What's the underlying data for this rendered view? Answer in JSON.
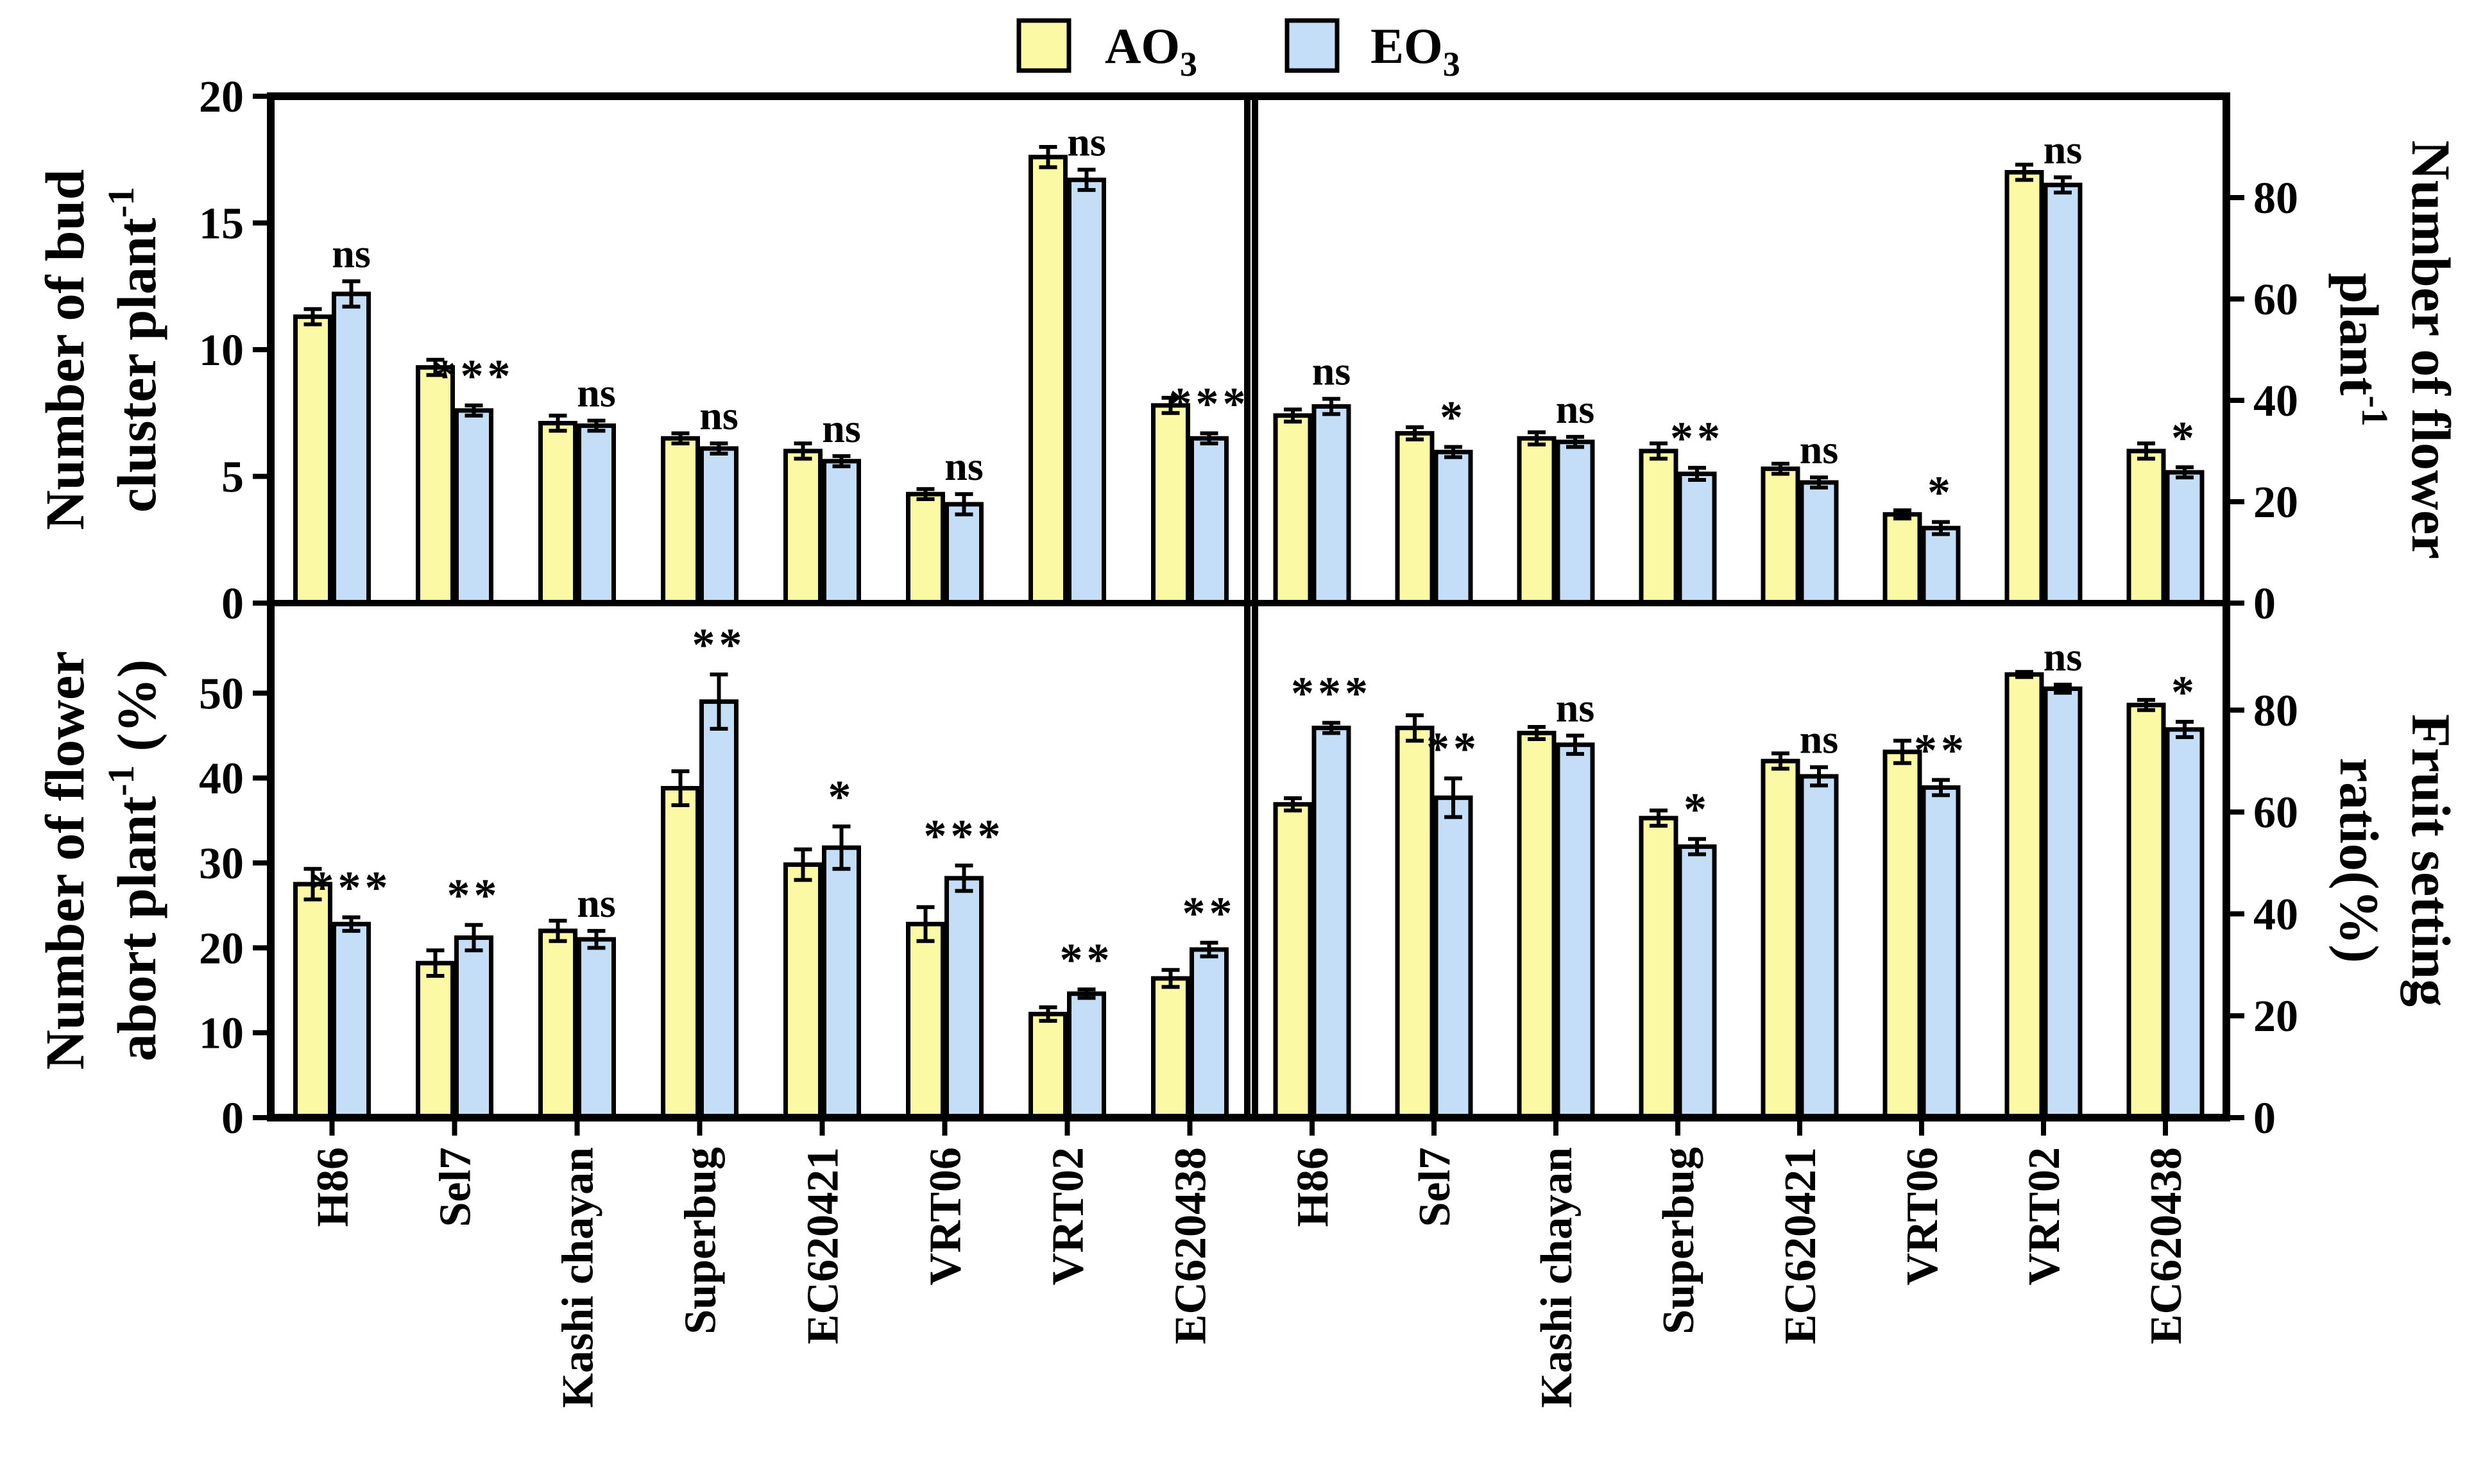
{
  "legend": {
    "items": [
      {
        "label": "AO",
        "sub": "3",
        "color": "#fbf9a3"
      },
      {
        "label": "EO",
        "sub": "3",
        "color": "#c5def7"
      }
    ]
  },
  "chart_data": [
    {
      "id": "bud",
      "type": "bar",
      "title": "",
      "ylabel_lines": [
        {
          "text": "Number of bud",
          "sup": ""
        },
        {
          "text": "cluster plant",
          "sup": "-1"
        }
      ],
      "ylim": [
        0,
        20
      ],
      "yticks": [
        0,
        5,
        10,
        15,
        20
      ],
      "categories": [
        "H86",
        "Sel7",
        "Kashi chayan",
        "Superbug",
        "EC620421",
        "VRT06",
        "VRT02",
        "EC620438"
      ],
      "series": [
        {
          "name": "AO3",
          "values": [
            11.3,
            9.3,
            7.1,
            6.5,
            6.0,
            4.3,
            17.6,
            7.8
          ],
          "errors": [
            0.3,
            0.3,
            0.3,
            0.2,
            0.3,
            0.2,
            0.4,
            0.3
          ]
        },
        {
          "name": "EO3",
          "values": [
            12.2,
            7.6,
            7.0,
            6.1,
            5.6,
            3.9,
            16.7,
            6.5
          ],
          "errors": [
            0.5,
            0.2,
            0.2,
            0.2,
            0.2,
            0.4,
            0.4,
            0.2
          ]
        }
      ],
      "significance": [
        "ns",
        "***",
        "ns",
        "ns",
        "ns",
        "ns",
        "ns",
        "***"
      ]
    },
    {
      "id": "flower",
      "type": "bar",
      "title": "",
      "ylabel_lines": [
        {
          "text": "Number of flower",
          "sup": ""
        },
        {
          "text": "plant",
          "sup": "-1"
        }
      ],
      "ylim": [
        0,
        100
      ],
      "yticks": [
        0,
        20,
        40,
        60,
        80
      ],
      "categories": [
        "H86",
        "Sel7",
        "Kashi chayan",
        "Superbug",
        "EC620421",
        "VRT06",
        "VRT02",
        "EC620438"
      ],
      "series": [
        {
          "name": "AO3",
          "values": [
            37,
            33.5,
            32.5,
            30,
            26.5,
            17.5,
            85,
            30
          ],
          "errors": [
            1.2,
            1.2,
            1.2,
            1.5,
            1.0,
            0.8,
            1.5,
            1.5
          ]
        },
        {
          "name": "EO3",
          "values": [
            38.8,
            29.8,
            31.8,
            25.5,
            23.8,
            14.8,
            82.5,
            25.8
          ],
          "errors": [
            1.5,
            1.0,
            1.0,
            1.2,
            1.0,
            1.2,
            1.5,
            1.0
          ]
        }
      ],
      "significance": [
        "ns",
        "*",
        "ns",
        "**",
        "ns",
        "*",
        "ns",
        "*"
      ]
    },
    {
      "id": "abort",
      "type": "bar",
      "title": "",
      "ylabel_lines": [
        {
          "text": "Number of flower",
          "sup": ""
        },
        {
          "text": "abort plant",
          "sup": "-1",
          "tail": " (%)"
        }
      ],
      "ylim": [
        0,
        60
      ],
      "yticks": [
        0,
        10,
        20,
        30,
        40,
        50
      ],
      "categories": [
        "H86",
        "Sel7",
        "Kashi chayan",
        "Superbug",
        "EC620421",
        "VRT06",
        "VRT02",
        "EC620438"
      ],
      "series": [
        {
          "name": "AO3",
          "values": [
            27.5,
            18.2,
            22.0,
            38.8,
            29.8,
            22.8,
            12.2,
            16.4
          ],
          "errors": [
            1.8,
            1.5,
            1.2,
            2.0,
            1.8,
            2.0,
            0.8,
            1.0
          ]
        },
        {
          "name": "EO3",
          "values": [
            22.8,
            21.2,
            21.0,
            49.0,
            31.8,
            28.2,
            14.6,
            19.8
          ],
          "errors": [
            0.8,
            1.5,
            1.0,
            3.2,
            2.5,
            1.5,
            0.5,
            0.8
          ]
        }
      ],
      "significance": [
        "***",
        "**",
        "ns",
        "**",
        "*",
        "***",
        "**",
        "**"
      ]
    },
    {
      "id": "fruit",
      "type": "bar",
      "title": "",
      "ylabel_lines": [
        {
          "text": "Fruit setting",
          "sup": ""
        },
        {
          "text": "ratio(%)",
          "sup": ""
        }
      ],
      "ylim": [
        0,
        100
      ],
      "yticks": [
        0,
        20,
        40,
        60,
        80
      ],
      "categories": [
        "H86",
        "Sel7",
        "Kashi chayan",
        "Superbug",
        "EC620421",
        "VRT06",
        "VRT02",
        "EC620438"
      ],
      "series": [
        {
          "name": "AO3",
          "values": [
            61.5,
            76.5,
            75.5,
            58.8,
            70.0,
            71.8,
            87.0,
            81.0
          ],
          "errors": [
            1.2,
            2.5,
            1.2,
            1.5,
            1.5,
            2.2,
            0.5,
            1.0
          ]
        },
        {
          "name": "EO3",
          "values": [
            76.5,
            62.8,
            73.2,
            53.2,
            67.0,
            64.8,
            84.2,
            76.2
          ],
          "errors": [
            1.0,
            3.8,
            1.8,
            1.5,
            1.8,
            1.5,
            0.8,
            1.5
          ]
        }
      ],
      "significance": [
        "***",
        "**",
        "ns",
        "*",
        "ns",
        "**",
        "ns",
        "*"
      ]
    }
  ]
}
